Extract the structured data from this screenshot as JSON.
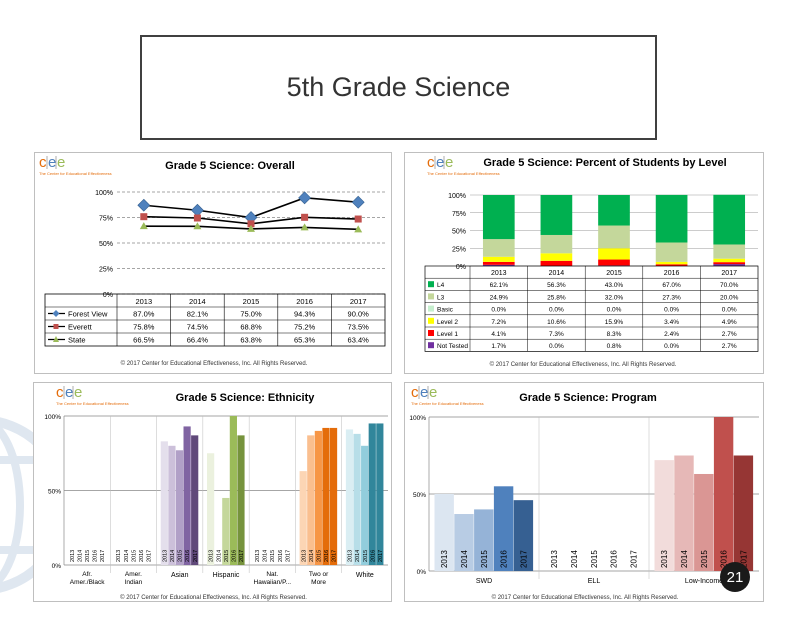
{
  "slide": {
    "title": "5th Grade Science",
    "page_number": "21"
  },
  "logo": {
    "letters": [
      "c",
      "e",
      "e"
    ],
    "tagline": "The Center for Educational Effectiveness"
  },
  "colors": {
    "accent_orange": "#e46c0a",
    "accent_blue": "#4f81bd",
    "accent_green": "#9bbb59"
  },
  "chart_data": [
    {
      "type": "line",
      "title": "Grade 5 Science: Overall",
      "x": [
        "2013",
        "2014",
        "2015",
        "2016",
        "2017"
      ],
      "yticks": [
        "100%",
        "75%",
        "50%",
        "25%",
        "0%"
      ],
      "ylim": [
        0,
        100
      ],
      "series": [
        {
          "name": "Forest View",
          "values": [
            87.0,
            82.1,
            75.0,
            94.3,
            90.0
          ],
          "labels": [
            "87.0%",
            "82.1%",
            "75.0%",
            "94.3%",
            "90.0%"
          ],
          "color": "#4f81bd",
          "marker": "diamond"
        },
        {
          "name": "Everett",
          "values": [
            75.8,
            74.5,
            68.8,
            75.2,
            73.5
          ],
          "labels": [
            "75.8%",
            "74.5%",
            "68.8%",
            "75.2%",
            "73.5%"
          ],
          "color": "#c0504d",
          "marker": "square"
        },
        {
          "name": "State",
          "values": [
            66.5,
            66.4,
            63.8,
            65.3,
            63.4
          ],
          "labels": [
            "66.5%",
            "66.4%",
            "63.8%",
            "65.3%",
            "63.4%"
          ],
          "color": "#9bbb59",
          "marker": "triangle"
        }
      ],
      "footer": "© 2017 Center for Educational Effectiveness, Inc. All Rights Reserved."
    },
    {
      "type": "bar",
      "stacked": true,
      "title": "Grade 5 Science: Percent of Students by Level",
      "x": [
        "2013",
        "2014",
        "2015",
        "2016",
        "2017"
      ],
      "yticks": [
        "100%",
        "75%",
        "50%",
        "25%",
        "0%"
      ],
      "ylim": [
        0,
        100
      ],
      "series": [
        {
          "name": "L4",
          "values": [
            62.1,
            56.3,
            43.0,
            67.0,
            70.0
          ],
          "labels": [
            "62.1%",
            "56.3%",
            "43.0%",
            "67.0%",
            "70.0%"
          ],
          "color": "#00b050"
        },
        {
          "name": "L3",
          "values": [
            24.9,
            25.8,
            32.0,
            27.3,
            20.0
          ],
          "labels": [
            "24.9%",
            "25.8%",
            "32.0%",
            "27.3%",
            "20.0%"
          ],
          "color": "#c4d79b"
        },
        {
          "name": "Basic",
          "values": [
            0.0,
            0.0,
            0.0,
            0.0,
            0.0
          ],
          "labels": [
            "0.0%",
            "0.0%",
            "0.0%",
            "0.0%",
            "0.0%"
          ],
          "color": "#c6efce"
        },
        {
          "name": "Level 2",
          "values": [
            7.2,
            10.6,
            15.9,
            3.4,
            4.9
          ],
          "labels": [
            "7.2%",
            "10.6%",
            "15.9%",
            "3.4%",
            "4.9%"
          ],
          "color": "#ffff00"
        },
        {
          "name": "Level 1",
          "values": [
            4.1,
            7.3,
            8.3,
            2.4,
            2.7
          ],
          "labels": [
            "4.1%",
            "7.3%",
            "8.3%",
            "2.4%",
            "2.7%"
          ],
          "color": "#ff0000"
        },
        {
          "name": "Not Tested",
          "values": [
            1.7,
            0.0,
            0.8,
            0.0,
            2.7
          ],
          "labels": [
            "1.7%",
            "0.0%",
            "0.8%",
            "0.0%",
            "2.7%"
          ],
          "color": "#7030a0"
        }
      ],
      "footer": "© 2017 Center for Educational Effectiveness, Inc. All Rights Reserved."
    },
    {
      "type": "bar",
      "title": "Grade 5 Science: Ethnicity",
      "categories": [
        "Afr. Amer./Black",
        "Amer. Indian",
        "Asian",
        "Hispanic",
        "Nat. Hawaiian/P...",
        "Two or More",
        "White"
      ],
      "x": [
        "2013",
        "2014",
        "2015",
        "2016",
        "2017"
      ],
      "yticks": [
        "100%",
        "50%",
        "0%"
      ],
      "ylim": [
        0,
        100
      ],
      "values": [
        [
          null,
          null,
          null,
          null,
          null
        ],
        [
          null,
          null,
          null,
          null,
          null
        ],
        [
          83,
          80,
          77,
          93,
          87
        ],
        [
          75,
          null,
          45,
          100,
          87
        ],
        [
          null,
          null,
          null,
          null,
          null
        ],
        [
          63,
          87,
          90,
          92,
          92
        ],
        [
          91,
          88,
          80,
          95,
          95
        ]
      ],
      "colors": [
        [
          "#8064a2",
          "#8064a2",
          "#8064a2",
          "#8064a2",
          "#8064a2"
        ],
        [
          "#8064a2",
          "#8064a2",
          "#8064a2",
          "#8064a2",
          "#8064a2"
        ],
        [
          "#e4dfec",
          "#ccc0da",
          "#b1a0c7",
          "#8064a2",
          "#60497a"
        ],
        [
          "#ebf1de",
          "#d8e4bc",
          "#c4d79b",
          "#9bbb59",
          "#76933c"
        ],
        [
          "#dce6f1",
          "#dce6f1",
          "#dce6f1",
          "#dce6f1",
          "#dce6f1"
        ],
        [
          "#fcd5b4",
          "#fabf8f",
          "#f79646",
          "#e46c0a",
          "#e46c0a"
        ],
        [
          "#daeef3",
          "#b7dee8",
          "#92cddc",
          "#31869b",
          "#31869b"
        ]
      ],
      "footer": "© 2017 Center for Educational Effectiveness, Inc. All Rights Reserved."
    },
    {
      "type": "bar",
      "title": "Grade 5 Science: Program",
      "categories": [
        "SWD",
        "ELL",
        "Low-Income"
      ],
      "x": [
        "2013",
        "2014",
        "2015",
        "2016",
        "2017"
      ],
      "yticks": [
        "100%",
        "50%",
        "0%"
      ],
      "ylim": [
        0,
        100
      ],
      "values": [
        [
          50,
          37,
          40,
          55,
          46
        ],
        [
          null,
          null,
          null,
          null,
          null
        ],
        [
          72,
          75,
          63,
          100,
          75
        ]
      ],
      "colors": [
        [
          "#dce6f1",
          "#b8cce4",
          "#95b3d7",
          "#4f81bd",
          "#366092"
        ],
        [
          "#ffffff",
          "#ffffff",
          "#ffffff",
          "#ffffff",
          "#ffffff"
        ],
        [
          "#f2dcdb",
          "#e6b8b7",
          "#da9694",
          "#c0504d",
          "#963634"
        ]
      ],
      "footer": "© 2017 Center for Educational Effectiveness, Inc. All Rights Reserved."
    }
  ]
}
